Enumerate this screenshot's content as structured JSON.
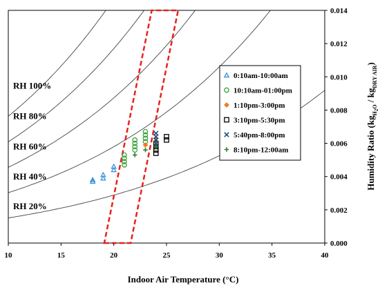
{
  "chart_data": {
    "type": "scatter",
    "xlabel": "Indoor Air Temperature (°C)",
    "ylabel": {
      "main": "Humidity Ratio (kg",
      "sub1": "H",
      "sub2": "2",
      "sub3": "O",
      "mid": " / kg",
      "sub4": "DRY AIR",
      "end": ")"
    },
    "xlim": [
      10,
      40
    ],
    "ylim": [
      0,
      0.014
    ],
    "x_ticks": [
      "10",
      "15",
      "20",
      "25",
      "30",
      "35",
      "40"
    ],
    "y_ticks": [
      "0.000",
      "0.002",
      "0.004",
      "0.006",
      "0.008",
      "0.010",
      "0.012",
      "0.014"
    ],
    "grid": false,
    "legend_position": "right",
    "rh_curves": [
      {
        "label": "RH 20%",
        "rh": 0.2
      },
      {
        "label": "RH 40%",
        "rh": 0.4
      },
      {
        "label": "RH 60%",
        "rh": 0.6
      },
      {
        "label": "RH 80%",
        "rh": 0.8
      },
      {
        "label": "RH 100%",
        "rh": 1.0
      }
    ],
    "comfort_zone": {
      "color": "#e8201c",
      "corners": [
        [
          19.1,
          0.0
        ],
        [
          21.6,
          0.0
        ],
        [
          26.1,
          0.014
        ],
        [
          23.6,
          0.014
        ]
      ]
    },
    "series": [
      {
        "name": "0:10am-10:00am",
        "marker": "triangle",
        "color": "#3a8fd9",
        "x": [
          18,
          18,
          19,
          19,
          20,
          20
        ],
        "y": [
          0.0037,
          0.0038,
          0.0039,
          0.0041,
          0.0044,
          0.0046
        ]
      },
      {
        "name": "10:10am-01:00pm",
        "marker": "circle",
        "color": "#3aa33a",
        "x": [
          21,
          21,
          21,
          21,
          22,
          22,
          22,
          22,
          23,
          23,
          23,
          23
        ],
        "y": [
          0.0047,
          0.0049,
          0.0051,
          0.0053,
          0.0056,
          0.0058,
          0.006,
          0.0062,
          0.0061,
          0.0063,
          0.0065,
          0.0067
        ]
      },
      {
        "name": "1:10pm-3:00pm",
        "marker": "diamond",
        "color": "#f07b24",
        "x": [
          23,
          24,
          24
        ],
        "y": [
          0.0059,
          0.0061,
          0.0063
        ]
      },
      {
        "name": "3:10pm-5:30pm",
        "marker": "square",
        "color": "#000000",
        "x": [
          24,
          24,
          24,
          24,
          25,
          25
        ],
        "y": [
          0.0054,
          0.0056,
          0.0058,
          0.006,
          0.0062,
          0.0064
        ]
      },
      {
        "name": "5:40pm-8:00pm",
        "marker": "x",
        "color": "#1f4e79",
        "x": [
          24,
          24,
          24,
          24
        ],
        "y": [
          0.006,
          0.0062,
          0.0064,
          0.0066
        ]
      },
      {
        "name": "8:10pm-12:00am",
        "marker": "plus",
        "color": "#2f7d2f",
        "x": [
          22,
          23,
          24
        ],
        "y": [
          0.0053,
          0.0056,
          0.0058
        ]
      }
    ]
  }
}
